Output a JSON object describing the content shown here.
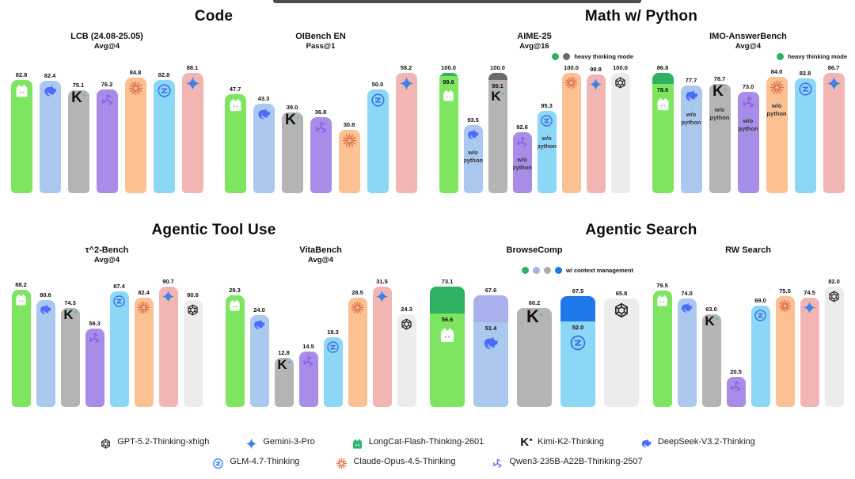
{
  "sections": [
    {
      "title": "Code",
      "charts": [
        "lcb",
        "oibench"
      ]
    },
    {
      "title": "Math w/ Python",
      "charts": [
        "aime25",
        "imo"
      ]
    },
    {
      "title": "Agentic Tool Use",
      "charts": [
        "tau2",
        "vitabench"
      ]
    },
    {
      "title": "Agentic Search",
      "charts": [
        "browsecomp",
        "rwsearch"
      ]
    }
  ],
  "models": {
    "gpt": {
      "label": "GPT-5.2-Thinking-xhigh",
      "color": "#ececec",
      "icon": "openai-icon",
      "icon_color": "#2a2a2a"
    },
    "gemini": {
      "label": "Gemini-3-Pro",
      "color": "#f1b6b4",
      "icon": "gemini-star-icon",
      "icon_color": "#4e8df7"
    },
    "longcat": {
      "label": "LongCat-Flash-Thinking-2601",
      "color": "#7ee561",
      "cap_color": "#2eb161",
      "icon": "longcat-cat-icon",
      "icon_color": "#2eb872"
    },
    "kimi": {
      "label": "Kimi-K2-Thinking",
      "color": "#b4b4b4",
      "cap_color": "#6b6b6b",
      "icon": "kimi-k-icon",
      "icon_color": "#111111"
    },
    "deepseek": {
      "label": "DeepSeek-V3.2-Thinking",
      "color": "#abc8ef",
      "cap_color": "#a9b0eb",
      "icon": "deepseek-whale-icon",
      "icon_color": "#4d6bfe"
    },
    "glm": {
      "label": "GLM-4.7-Thinking",
      "color": "#8cd6f6",
      "cap_color": "#1f78e9",
      "icon": "glm-circle-icon",
      "icon_color": "#3a74e8"
    },
    "claude": {
      "label": "Claude-Opus-4.5-Thinking",
      "color": "#fbc193",
      "icon": "claude-spark-icon",
      "icon_color": "#e0714c"
    },
    "qwen": {
      "label": "Qwen3-235B-A22B-Thinking-2507",
      "color": "#a78de8",
      "icon": "qwen-knot-icon",
      "icon_color": "#8b63e8"
    }
  },
  "legend": {
    "rows": [
      [
        "gpt",
        "gemini",
        "longcat",
        "kimi",
        "deepseek"
      ],
      [
        "glm",
        "claude",
        "qwen"
      ]
    ]
  },
  "chart_data": [
    {
      "id": "lcb",
      "type": "bar",
      "title": "LCB (24.08-25.05)",
      "subtitle": "Avg@4",
      "ymin": 0,
      "ymax": 88.1,
      "bars": [
        {
          "model": "longcat",
          "value": 82.8
        },
        {
          "model": "deepseek",
          "value": 82.4
        },
        {
          "model": "kimi",
          "value": 75.1
        },
        {
          "model": "qwen",
          "value": 76.2
        },
        {
          "model": "claude",
          "value": 84.8
        },
        {
          "model": "glm",
          "value": 82.8
        },
        {
          "model": "gemini",
          "value": 88.1
        }
      ]
    },
    {
      "id": "oibench",
      "type": "bar",
      "title": "OIBench EN",
      "subtitle": "Pass@1",
      "ymin": 0,
      "ymax": 58.2,
      "bars": [
        {
          "model": "longcat",
          "value": 47.7
        },
        {
          "model": "deepseek",
          "value": 43.3
        },
        {
          "model": "kimi",
          "value": 39.0
        },
        {
          "model": "qwen",
          "value": 36.8
        },
        {
          "model": "claude",
          "value": 30.8
        },
        {
          "model": "glm",
          "value": 50.0
        },
        {
          "model": "gemini",
          "value": 58.2
        }
      ]
    },
    {
      "id": "aime25",
      "type": "bar",
      "title": "AIME-25",
      "subtitle": "Avg@16",
      "ymin": 85,
      "ymax": 100,
      "mini_legend": {
        "dots": [
          "#2eb161",
          "#6b6b6b"
        ],
        "label": "heavy thinking mode"
      },
      "bars": [
        {
          "model": "longcat",
          "value": 99.6,
          "cap": 100.0
        },
        {
          "model": "deepseek",
          "value": 93.5,
          "note": "w/o python"
        },
        {
          "model": "kimi",
          "value": 99.1,
          "cap": 100.0
        },
        {
          "model": "qwen",
          "value": 92.6,
          "note": "w/o python"
        },
        {
          "model": "glm",
          "value": 95.3,
          "note": "w/o python"
        },
        {
          "model": "claude",
          "value": 100.0
        },
        {
          "model": "gemini",
          "value": 99.8
        },
        {
          "model": "gpt",
          "value": 100.0
        }
      ]
    },
    {
      "id": "imo",
      "type": "bar",
      "title": "IMO-AnswerBench",
      "subtitle": "Avg@4",
      "ymin": 0,
      "ymax": 86.8,
      "mini_legend": {
        "dots": [
          "#2eb161"
        ],
        "label": "heavy thinking mode"
      },
      "bars": [
        {
          "model": "longcat",
          "value": 78.6,
          "cap": 86.8
        },
        {
          "model": "deepseek",
          "value": 77.7,
          "note": "w/o python"
        },
        {
          "model": "kimi",
          "value": 78.7,
          "note": "w/o python"
        },
        {
          "model": "qwen",
          "value": 73.0,
          "note": "w/o python"
        },
        {
          "model": "claude",
          "value": 84.0,
          "note": "w/o python"
        },
        {
          "model": "glm",
          "value": 82.8
        },
        {
          "model": "gemini",
          "value": 86.7
        }
      ]
    },
    {
      "id": "tau2",
      "type": "bar",
      "title": "τ^2-Bench",
      "subtitle": "Avg@4",
      "ymin": 0,
      "ymax": 90.7,
      "bars": [
        {
          "model": "longcat",
          "value": 88.2
        },
        {
          "model": "deepseek",
          "value": 80.6
        },
        {
          "model": "kimi",
          "value": 74.3
        },
        {
          "model": "qwen",
          "value": 59.3
        },
        {
          "model": "glm",
          "value": 87.4
        },
        {
          "model": "claude",
          "value": 82.4
        },
        {
          "model": "gemini",
          "value": 90.7
        },
        {
          "model": "gpt",
          "value": 80.6
        }
      ]
    },
    {
      "id": "vitabench",
      "type": "bar",
      "title": "VitaBench",
      "subtitle": "Avg@4",
      "ymin": 0,
      "ymax": 31.5,
      "bars": [
        {
          "model": "longcat",
          "value": 29.3
        },
        {
          "model": "deepseek",
          "value": 24.0
        },
        {
          "model": "kimi",
          "value": 12.8
        },
        {
          "model": "qwen",
          "value": 14.5
        },
        {
          "model": "glm",
          "value": 18.3
        },
        {
          "model": "claude",
          "value": 28.5
        },
        {
          "model": "gemini",
          "value": 31.5
        },
        {
          "model": "gpt",
          "value": 24.3
        }
      ]
    },
    {
      "id": "browsecomp",
      "type": "bar",
      "title": "BrowseComp",
      "subtitle": "",
      "ymin": 0,
      "ymax": 73.1,
      "mini_legend": {
        "dots": [
          "#2bb163",
          "#a9b0eb",
          "#ababab",
          "#1f78e9"
        ],
        "label": "w/ context management"
      },
      "bars": [
        {
          "model": "longcat",
          "value": 56.6,
          "cap": 73.1
        },
        {
          "model": "deepseek",
          "value": 51.4,
          "cap": 67.6
        },
        {
          "model": "kimi",
          "value": 60.2
        },
        {
          "model": "glm",
          "value": 52.0,
          "cap": 67.5
        },
        {
          "model": "gpt",
          "value": 65.8
        }
      ]
    },
    {
      "id": "rwsearch",
      "type": "bar",
      "title": "RW Search",
      "subtitle": "",
      "ymin": 0,
      "ymax": 82.0,
      "bars": [
        {
          "model": "longcat",
          "value": 79.5
        },
        {
          "model": "deepseek",
          "value": 74.0
        },
        {
          "model": "kimi",
          "value": 63.0
        },
        {
          "model": "qwen",
          "value": 20.5
        },
        {
          "model": "glm",
          "value": 69.0
        },
        {
          "model": "claude",
          "value": 75.5
        },
        {
          "model": "gemini",
          "value": 74.5
        },
        {
          "model": "gpt",
          "value": 82.0
        }
      ]
    }
  ]
}
